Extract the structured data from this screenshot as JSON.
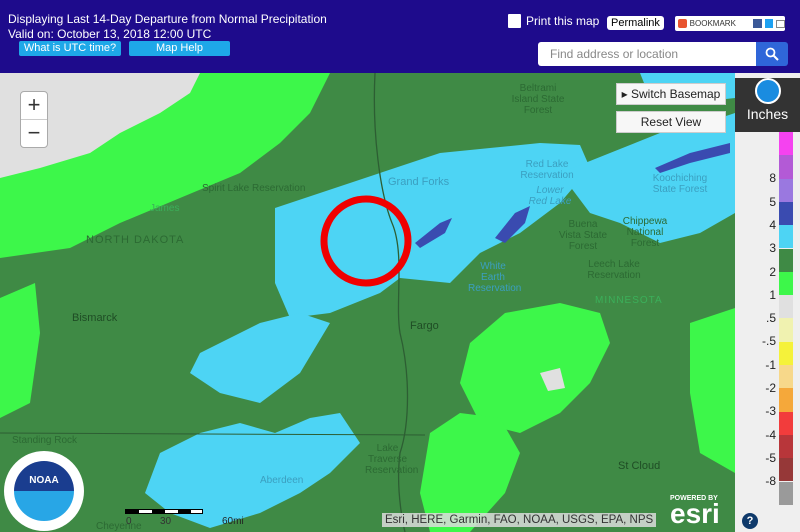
{
  "header": {
    "title_line1": "Displaying Last 14-Day Departure from Normal Precipitation",
    "title_line2": "Valid on: October 13, 2018 12:00 UTC",
    "utc_button": "What is UTC time?",
    "help_button": "Map Help",
    "print_label": "Print this map",
    "permalink_label": "Permalink",
    "bookmark_label": "BOOKMARK",
    "search_placeholder": "Find address or location"
  },
  "map": {
    "switch_basemap": "Switch Basemap",
    "reset_view": "Reset View",
    "zoom_in": "+",
    "zoom_out": "−",
    "labels": [
      "Spirit Lake Reservation",
      "NORTH DAKOTA",
      "James",
      "Bismarck",
      "Grand Forks",
      "Fargo",
      "Beltrami Island State Forest",
      "Red Lake Reservation",
      "Lower Red Lake",
      "Koochiching State Forest",
      "Buena Vista State Forest",
      "Chippewa National Forest",
      "Leech Lake Reservation",
      "White Earth Reservation",
      "MINNESOTA",
      "Standing Rock",
      "Aberdeen",
      "Lake Traverse Reservation",
      "St Cloud",
      "Cheyenne"
    ],
    "scale": [
      "0",
      "30",
      "60mi"
    ],
    "attribution": "Esri, HERE, Garmin, FAO, NOAA, USGS, EPA, NPS",
    "esri_powered": "POWERED BY",
    "esri_logo": "esri",
    "noaa_logo": "NOAA"
  },
  "legend": {
    "unit": "Inches",
    "help": "?",
    "items": [
      {
        "label": "",
        "color": "#f542f0"
      },
      {
        "label": "8",
        "color": "#b35ad6"
      },
      {
        "label": "5",
        "color": "#9a78e0"
      },
      {
        "label": "4",
        "color": "#3a4bb0"
      },
      {
        "label": "3",
        "color": "#4dd4f4"
      },
      {
        "label": "2",
        "color": "#3f8a45"
      },
      {
        "label": "1",
        "color": "#3df74a"
      },
      {
        "label": ".5",
        "color": "#e0e0e0"
      },
      {
        "label": "-.5",
        "color": "#f0f2b0"
      },
      {
        "label": "-1",
        "color": "#f5f23a"
      },
      {
        "label": "-2",
        "color": "#f7d88a"
      },
      {
        "label": "-3",
        "color": "#f5a83a"
      },
      {
        "label": "-4",
        "color": "#f23c3c"
      },
      {
        "label": "-5",
        "color": "#b8363a"
      },
      {
        "label": "-8",
        "color": "#963838"
      },
      {
        "label": "",
        "color": "#9a9a9a"
      }
    ]
  }
}
